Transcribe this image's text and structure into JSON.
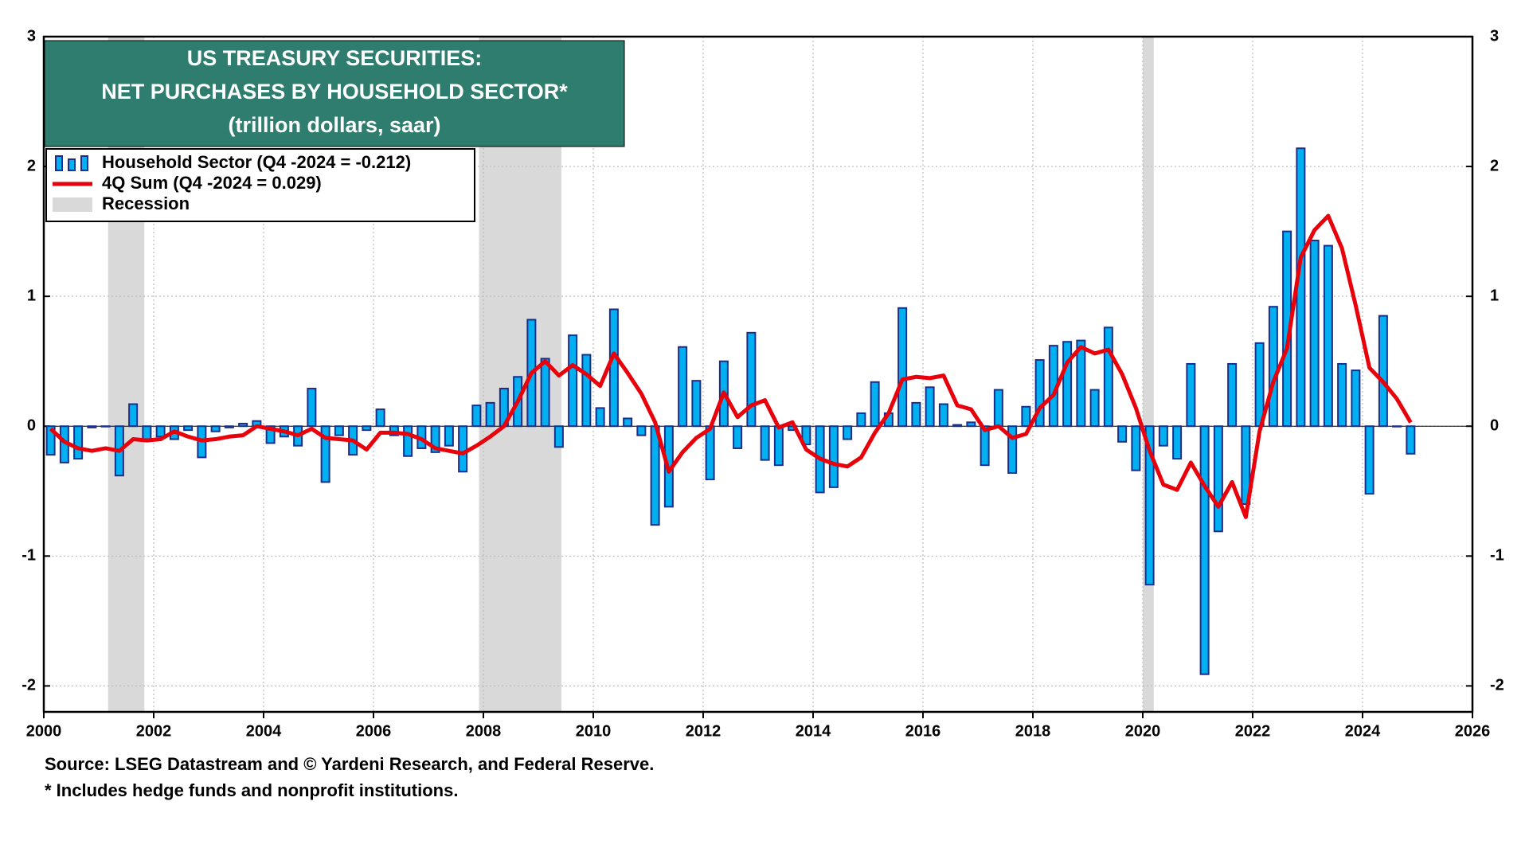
{
  "chart_data": {
    "type": "bar",
    "title": [
      "US TREASURY SECURITIES:",
      "NET PURCHASES BY HOUSEHOLD SECTOR*"
    ],
    "subtitle": "(trillion dollars, saar)",
    "notes": [
      "Source: LSEG Datastream and © Yardeni Research, and Federal Reserve.",
      "* Includes hedge funds and nonprofit institutions."
    ],
    "recession_label": "Recession",
    "recession_color": "#d9d9d9",
    "recessions": [
      [
        2001.17,
        2001.83
      ],
      [
        2007.92,
        2009.42
      ],
      [
        2020.0,
        2020.2
      ]
    ],
    "title_box_color": "#2e7d6e",
    "grid": true,
    "xlim": [
      2000,
      2026
    ],
    "xticks": [
      2000,
      2002,
      2004,
      2006,
      2008,
      2010,
      2012,
      2014,
      2016,
      2018,
      2020,
      2022,
      2024,
      2026
    ],
    "ylim": [
      -2.2,
      3
    ],
    "yticks": [
      -2,
      -1,
      0,
      1,
      2,
      3
    ],
    "x": [
      2000.125,
      2000.375,
      2000.625,
      2000.875,
      2001.125,
      2001.375,
      2001.625,
      2001.875,
      2002.125,
      2002.375,
      2002.625,
      2002.875,
      2003.125,
      2003.375,
      2003.625,
      2003.875,
      2004.125,
      2004.375,
      2004.625,
      2004.875,
      2005.125,
      2005.375,
      2005.625,
      2005.875,
      2006.125,
      2006.375,
      2006.625,
      2006.875,
      2007.125,
      2007.375,
      2007.625,
      2007.875,
      2008.125,
      2008.375,
      2008.625,
      2008.875,
      2009.125,
      2009.375,
      2009.625,
      2009.875,
      2010.125,
      2010.375,
      2010.625,
      2010.875,
      2011.125,
      2011.375,
      2011.625,
      2011.875,
      2012.125,
      2012.375,
      2012.625,
      2012.875,
      2013.125,
      2013.375,
      2013.625,
      2013.875,
      2014.125,
      2014.375,
      2014.625,
      2014.875,
      2015.125,
      2015.375,
      2015.625,
      2015.875,
      2016.125,
      2016.375,
      2016.625,
      2016.875,
      2017.125,
      2017.375,
      2017.625,
      2017.875,
      2018.125,
      2018.375,
      2018.625,
      2018.875,
      2019.125,
      2019.375,
      2019.625,
      2019.875,
      2020.125,
      2020.375,
      2020.625,
      2020.875,
      2021.125,
      2021.375,
      2021.625,
      2021.875,
      2022.125,
      2022.375,
      2022.625,
      2022.875,
      2023.125,
      2023.375,
      2023.625,
      2023.875,
      2024.125,
      2024.375,
      2024.625,
      2024.875
    ],
    "series": [
      {
        "name": "Household Sector (Q4 -2024 = -0.212)",
        "type": "bar",
        "color": "#00b0f0",
        "edge_color": "#1a2f8a",
        "values": [
          -0.22,
          -0.28,
          -0.25,
          -0.01,
          0.0,
          -0.38,
          0.17,
          -0.1,
          -0.08,
          -0.1,
          -0.03,
          -0.24,
          -0.04,
          -0.01,
          0.02,
          0.04,
          -0.13,
          -0.08,
          -0.15,
          0.29,
          -0.43,
          -0.07,
          -0.22,
          -0.03,
          0.13,
          -0.07,
          -0.23,
          -0.17,
          -0.2,
          -0.15,
          -0.35,
          0.16,
          0.18,
          0.29,
          0.38,
          0.82,
          0.52,
          -0.16,
          0.7,
          0.55,
          0.14,
          0.9,
          0.06,
          -0.07,
          -0.76,
          -0.62,
          0.61,
          0.35,
          -0.41,
          0.5,
          -0.17,
          0.72,
          -0.26,
          -0.3,
          -0.03,
          -0.14,
          -0.51,
          -0.47,
          -0.1,
          0.1,
          0.34,
          0.1,
          0.91,
          0.18,
          0.3,
          0.17,
          0.01,
          0.03,
          -0.3,
          0.28,
          -0.36,
          0.15,
          0.51,
          0.62,
          0.65,
          0.66,
          0.28,
          0.76,
          -0.12,
          -0.34,
          -1.22,
          -0.15,
          -0.25,
          0.48,
          -1.91,
          -0.81,
          0.48,
          -0.6,
          0.64,
          0.92,
          1.5,
          2.14,
          1.43,
          1.39,
          0.48,
          0.43,
          -0.52,
          0.85,
          0.0,
          -0.212
        ]
      },
      {
        "name": "4Q Sum (Q4 -2024 = 0.029)",
        "type": "line",
        "color": "#e8000b",
        "values": [
          -0.02,
          -0.12,
          -0.17,
          -0.19,
          -0.17,
          -0.19,
          -0.1,
          -0.11,
          -0.1,
          -0.04,
          -0.08,
          -0.11,
          -0.1,
          -0.08,
          -0.07,
          0.0,
          -0.02,
          -0.04,
          -0.07,
          -0.02,
          -0.09,
          -0.1,
          -0.11,
          -0.18,
          -0.05,
          -0.05,
          -0.06,
          -0.1,
          -0.17,
          -0.19,
          -0.21,
          -0.15,
          -0.08,
          0.0,
          0.19,
          0.41,
          0.5,
          0.39,
          0.47,
          0.4,
          0.31,
          0.56,
          0.41,
          0.25,
          0.03,
          -0.35,
          -0.2,
          -0.09,
          -0.02,
          0.26,
          0.07,
          0.16,
          0.2,
          -0.01,
          0.03,
          -0.18,
          -0.25,
          -0.29,
          -0.31,
          -0.24,
          -0.05,
          0.1,
          0.36,
          0.38,
          0.37,
          0.39,
          0.16,
          0.13,
          -0.03,
          0.0,
          -0.09,
          -0.06,
          0.14,
          0.24,
          0.49,
          0.61,
          0.56,
          0.59,
          0.4,
          0.14,
          -0.19,
          -0.45,
          -0.49,
          -0.28,
          -0.46,
          -0.62,
          -0.43,
          -0.7,
          -0.04,
          0.34,
          0.6,
          1.3,
          1.51,
          1.62,
          1.37,
          0.93,
          0.45,
          0.34,
          0.21,
          0.029
        ]
      }
    ]
  }
}
